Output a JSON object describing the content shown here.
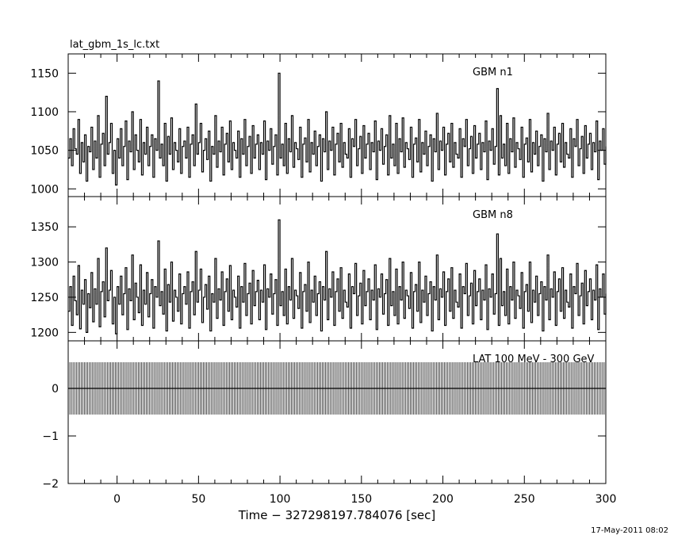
{
  "title": "lat_gbm_1s_lc.txt",
  "timestamp": "17-May-2011 08:02",
  "chart_data": [
    {
      "type": "line",
      "panel": "top",
      "label": "GBM n1",
      "x_range": [
        -30,
        300
      ],
      "ylim": [
        990,
        1175
      ],
      "y_ticks": [
        1000,
        1050,
        1100,
        1150
      ],
      "y_tick_labels": [
        "1000",
        "1050",
        "1100",
        "1150"
      ],
      "series": [
        {
          "x_start": -30,
          "x_step": 1,
          "values": [
            1040,
            1065,
            1030,
            1078,
            1052,
            1045,
            1090,
            1020,
            1060,
            1035,
            1070,
            1010,
            1055,
            1048,
            1080,
            1025,
            1062,
            1040,
            1095,
            1015,
            1058,
            1072,
            1030,
            1120,
            1045,
            1060,
            1085,
            1020,
            1050,
            1005,
            1065,
            1040,
            1078,
            1030,
            1055,
            1088,
            1012,
            1062,
            1048,
            1100,
            1025,
            1070,
            1050,
            1035,
            1090,
            1018,
            1060,
            1045,
            1080,
            1030,
            1055,
            1070,
            1015,
            1065,
            1050,
            1140,
            1040,
            1058,
            1030,
            1085,
            1010,
            1068,
            1045,
            1092,
            1025,
            1060,
            1050,
            1035,
            1078,
            1020,
            1055,
            1062,
            1040,
            1080,
            1015,
            1058,
            1070,
            1030,
            1110,
            1045,
            1060,
            1085,
            1022,
            1050,
            1065,
            1038,
            1075,
            1010,
            1055,
            1045,
            1095,
            1028,
            1062,
            1048,
            1080,
            1018,
            1058,
            1072,
            1035,
            1088,
            1025,
            1060,
            1050,
            1040,
            1075,
            1015,
            1065,
            1045,
            1090,
            1030,
            1055,
            1068,
            1020,
            1082,
            1040,
            1058,
            1070,
            1025,
            1060,
            1045,
            1088,
            1012,
            1062,
            1050,
            1078,
            1032,
            1055,
            1070,
            1018,
            1150,
            1040,
            1058,
            1030,
            1085,
            1020,
            1065,
            1048,
            1095,
            1028,
            1060,
            1052,
            1038,
            1080,
            1015,
            1058,
            1066,
            1035,
            1090,
            1022,
            1060,
            1045,
            1075,
            1030,
            1055,
            1070,
            1010,
            1065,
            1048,
            1100,
            1025,
            1062,
            1050,
            1080,
            1018,
            1058,
            1072,
            1035,
            1085,
            1028,
            1060,
            1045,
            1040,
            1078,
            1015,
            1065,
            1055,
            1090,
            1030,
            1052,
            1068,
            1020,
            1082,
            1040,
            1058,
            1072,
            1025,
            1060,
            1048,
            1088,
            1012,
            1062,
            1050,
            1078,
            1032,
            1055,
            1070,
            1018,
            1095,
            1040,
            1058,
            1030,
            1085,
            1020,
            1065,
            1048,
            1092,
            1028,
            1060,
            1052,
            1038,
            1080,
            1015,
            1058,
            1066,
            1035,
            1090,
            1022,
            1060,
            1045,
            1075,
            1030,
            1055,
            1070,
            1010,
            1065,
            1048,
            1098,
            1025,
            1062,
            1050,
            1080,
            1018,
            1058,
            1072,
            1035,
            1085,
            1028,
            1060,
            1045,
            1040,
            1078,
            1015,
            1065,
            1055,
            1090,
            1030,
            1052,
            1068,
            1020,
            1082,
            1040,
            1058,
            1072,
            1025,
            1060,
            1048,
            1088,
            1012,
            1062,
            1050,
            1078,
            1032,
            1055,
            1130,
            1018,
            1095,
            1040,
            1058,
            1030,
            1085,
            1020,
            1065,
            1048,
            1092,
            1028,
            1060,
            1052,
            1038,
            1080,
            1015,
            1058,
            1066,
            1035,
            1090,
            1022,
            1060,
            1045,
            1075,
            1030,
            1055,
            1070,
            1010,
            1065,
            1048,
            1098,
            1025,
            1062,
            1050,
            1080,
            1018,
            1058,
            1072,
            1035,
            1085,
            1028,
            1060,
            1045,
            1040,
            1078,
            1015,
            1065,
            1055,
            1090,
            1030,
            1052,
            1068,
            1020,
            1082,
            1040,
            1058,
            1072,
            1025,
            1060,
            1048,
            1088,
            1012,
            1062,
            1050,
            1078,
            1032,
            1055,
            1070,
            1018,
            1095,
            1040,
            1058,
            1030,
            1085,
            1020,
            1065,
            1048
          ]
        }
      ]
    },
    {
      "type": "line",
      "panel": "middle",
      "label": "GBM n8",
      "x_range": [
        -30,
        300
      ],
      "ylim": [
        1188,
        1393
      ],
      "y_ticks": [
        1200,
        1250,
        1300,
        1350
      ],
      "y_tick_labels": [
        "1200",
        "1250",
        "1300",
        "1350"
      ],
      "series": [
        {
          "x_start": -30,
          "x_step": 1,
          "values": [
            1230,
            1265,
            1210,
            1280,
            1245,
            1225,
            1295,
            1205,
            1260,
            1240,
            1275,
            1200,
            1255,
            1235,
            1285,
            1215,
            1262,
            1240,
            1305,
            1208,
            1258,
            1272,
            1222,
            1320,
            1245,
            1260,
            1288,
            1212,
            1250,
            1198,
            1265,
            1240,
            1280,
            1225,
            1255,
            1292,
            1204,
            1262,
            1245,
            1310,
            1218,
            1270,
            1250,
            1228,
            1296,
            1210,
            1260,
            1240,
            1285,
            1222,
            1255,
            1275,
            1206,
            1265,
            1250,
            1330,
            1238,
            1258,
            1226,
            1290,
            1202,
            1268,
            1243,
            1300,
            1216,
            1260,
            1250,
            1230,
            1283,
            1212,
            1255,
            1265,
            1240,
            1286,
            1206,
            1258,
            1272,
            1225,
            1315,
            1243,
            1260,
            1290,
            1214,
            1250,
            1268,
            1233,
            1280,
            1202,
            1255,
            1243,
            1305,
            1220,
            1262,
            1246,
            1286,
            1210,
            1258,
            1276,
            1230,
            1295,
            1218,
            1260,
            1250,
            1236,
            1280,
            1206,
            1265,
            1243,
            1298,
            1224,
            1255,
            1270,
            1212,
            1288,
            1238,
            1258,
            1274,
            1218,
            1260,
            1243,
            1296,
            1204,
            1262,
            1250,
            1283,
            1226,
            1255,
            1275,
            1210,
            1360,
            1238,
            1258,
            1224,
            1290,
            1212,
            1265,
            1246,
            1305,
            1220,
            1260,
            1252,
            1234,
            1285,
            1206,
            1258,
            1268,
            1230,
            1300,
            1214,
            1260,
            1243,
            1280,
            1224,
            1255,
            1272,
            1202,
            1265,
            1246,
            1315,
            1218,
            1262,
            1250,
            1286,
            1210,
            1258,
            1276,
            1230,
            1292,
            1220,
            1260,
            1243,
            1236,
            1283,
            1206,
            1265,
            1255,
            1298,
            1224,
            1252,
            1270,
            1212,
            1288,
            1238,
            1258,
            1276,
            1218,
            1260,
            1246,
            1296,
            1204,
            1262,
            1250,
            1283,
            1226,
            1255,
            1275,
            1210,
            1305,
            1238,
            1258,
            1224,
            1290,
            1212,
            1265,
            1246,
            1300,
            1220,
            1260,
            1252,
            1234,
            1285,
            1206,
            1258,
            1268,
            1230,
            1300,
            1214,
            1260,
            1243,
            1280,
            1224,
            1255,
            1272,
            1202,
            1265,
            1246,
            1310,
            1218,
            1262,
            1250,
            1286,
            1210,
            1258,
            1276,
            1230,
            1292,
            1220,
            1260,
            1243,
            1236,
            1283,
            1206,
            1265,
            1255,
            1298,
            1224,
            1252,
            1270,
            1212,
            1288,
            1238,
            1258,
            1276,
            1218,
            1260,
            1246,
            1296,
            1204,
            1262,
            1250,
            1283,
            1226,
            1255,
            1340,
            1210,
            1305,
            1238,
            1258,
            1224,
            1290,
            1212,
            1265,
            1246,
            1300,
            1220,
            1260,
            1252,
            1234,
            1285,
            1206,
            1258,
            1268,
            1230,
            1300,
            1214,
            1260,
            1243,
            1280,
            1224,
            1255,
            1272,
            1202,
            1265,
            1246,
            1310,
            1218,
            1262,
            1250,
            1286,
            1210,
            1258,
            1276,
            1230,
            1292,
            1220,
            1260,
            1243,
            1236,
            1283,
            1206,
            1265,
            1255,
            1298,
            1224,
            1252,
            1270,
            1212,
            1288,
            1238,
            1258,
            1276,
            1218,
            1260,
            1246,
            1296,
            1204,
            1262,
            1250,
            1283,
            1226,
            1255,
            1275,
            1210,
            1305,
            1238,
            1258,
            1224,
            1290,
            1212,
            1265,
            1246
          ]
        }
      ]
    },
    {
      "type": "line",
      "panel": "bottom",
      "label": "LAT 100 MeV - 300 GeV",
      "x_range": [
        -30,
        300
      ],
      "ylim": [
        -2,
        1
      ],
      "y_ticks": [
        -2,
        -1,
        0
      ],
      "y_tick_labels": [
        "−2",
        "−1",
        "0"
      ],
      "series": [
        {
          "x_start": -30,
          "x_step": 1,
          "values": [
            0
          ],
          "note_values": "all values 0"
        }
      ],
      "xlabel": "Time − 327298197.784076 [sec]",
      "x_ticks": [
        0,
        50,
        100,
        150,
        200,
        250,
        300
      ],
      "x_tick_labels": [
        "0",
        "50",
        "100",
        "150",
        "200",
        "250",
        "300"
      ]
    }
  ]
}
